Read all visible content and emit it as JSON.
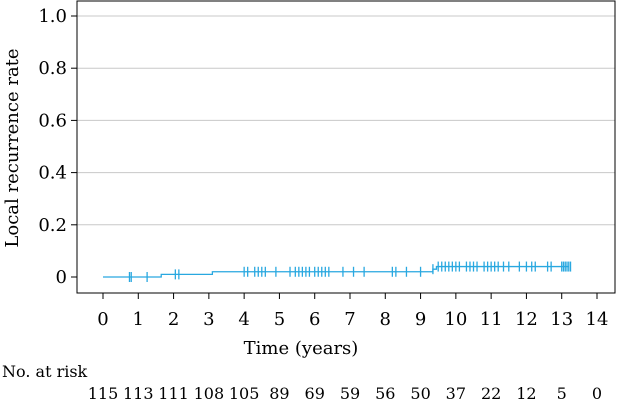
{
  "chart_data": {
    "type": "line",
    "title": "",
    "xlabel": "Time (years)",
    "ylabel": "Local recurrence rate",
    "xlim": [
      0,
      14
    ],
    "ylim": [
      0,
      1.0
    ],
    "x_ticks": [
      0,
      1,
      2,
      3,
      4,
      5,
      6,
      7,
      8,
      9,
      10,
      11,
      12,
      13,
      14
    ],
    "y_ticks": [
      0,
      0.2,
      0.4,
      0.6,
      0.8,
      1.0
    ],
    "y_tick_labels": [
      "0",
      "0.2",
      "0.4",
      "0.6",
      "0.8",
      "1.0"
    ],
    "grid": "horizontal",
    "color": "#29a8e0",
    "series": [
      {
        "steps": [
          {
            "x": 0,
            "y": 0
          },
          {
            "x": 1.65,
            "y": 0.01
          },
          {
            "x": 3.1,
            "y": 0.02
          },
          {
            "x": 9.35,
            "y": 0.03
          },
          {
            "x": 9.45,
            "y": 0.04
          },
          {
            "x": 13.2,
            "y": 0.04
          }
        ],
        "censor_times": [
          0.75,
          0.8,
          1.25,
          2.05,
          2.15,
          4.0,
          4.1,
          4.3,
          4.4,
          4.5,
          4.6,
          4.9,
          5.3,
          5.45,
          5.55,
          5.65,
          5.75,
          5.85,
          6.0,
          6.1,
          6.2,
          6.3,
          6.4,
          6.8,
          7.1,
          7.4,
          8.2,
          8.3,
          8.6,
          9.0,
          9.35,
          9.5,
          9.6,
          9.7,
          9.8,
          9.9,
          10.0,
          10.1,
          10.3,
          10.4,
          10.5,
          10.6,
          10.8,
          10.9,
          11.0,
          11.1,
          11.2,
          11.35,
          11.5,
          11.8,
          12.0,
          12.15,
          12.25,
          12.6,
          12.7,
          13.0,
          13.05,
          13.1,
          13.15,
          13.2,
          13.25
        ]
      }
    ],
    "risk_table": {
      "title": "No. at risk",
      "times": [
        0,
        1,
        2,
        3,
        4,
        5,
        6,
        7,
        8,
        9,
        10,
        11,
        12,
        13,
        14
      ],
      "counts": [
        "115",
        "113",
        "111",
        "108",
        "105",
        "89",
        "69",
        "59",
        "56",
        "50",
        "37",
        "22",
        "12",
        "5",
        "0"
      ]
    }
  }
}
